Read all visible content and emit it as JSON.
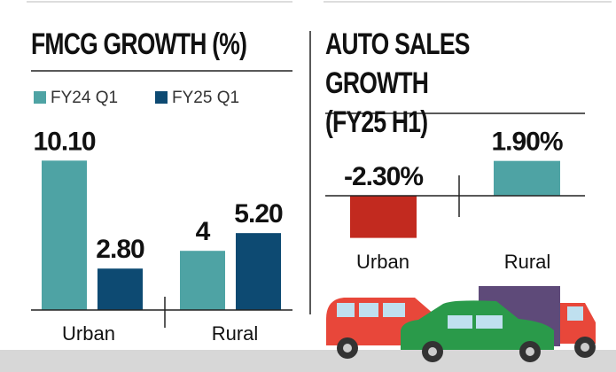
{
  "chart_data": [
    {
      "type": "bar",
      "title": "FMCG GROWTH (%)",
      "categories": [
        "Urban",
        "Rural"
      ],
      "series": [
        {
          "name": "FY24 Q1",
          "color": "#4ea3a4",
          "values": [
            10.1,
            4
          ],
          "value_labels": [
            "10.10",
            "4"
          ]
        },
        {
          "name": "FY25 Q1",
          "color": "#0d4a72",
          "values": [
            2.8,
            5.2
          ],
          "value_labels": [
            "2.80",
            "5.20"
          ]
        }
      ]
    },
    {
      "type": "bar",
      "title": "AUTO SALES GROWTH\n(FY25 H1)",
      "categories": [
        "Urban",
        "Rural"
      ],
      "values": [
        -2.3,
        1.9
      ],
      "value_labels": [
        "-2.30%",
        "1.90%"
      ],
      "colors": [
        "#c22a1f",
        "#4ea3a4"
      ]
    }
  ]
}
